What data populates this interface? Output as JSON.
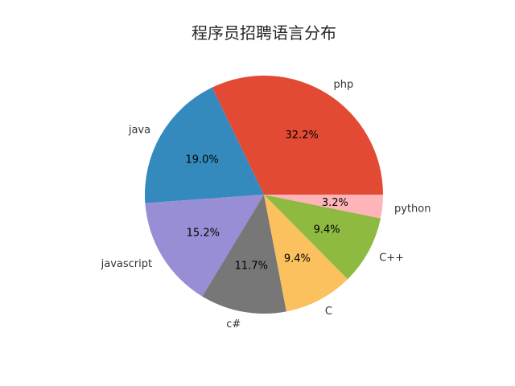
{
  "chart_data": {
    "type": "pie",
    "title": "程序员招聘语言分布",
    "start_angle_deg": 0,
    "direction": "counterclockwise",
    "slices": [
      {
        "label": "php",
        "value": 32.2,
        "pct_label": "32.2%",
        "color": "#e24a33"
      },
      {
        "label": "java",
        "value": 19.0,
        "pct_label": "19.0%",
        "color": "#348abd"
      },
      {
        "label": "javascript",
        "value": 15.2,
        "pct_label": "15.2%",
        "color": "#988ed5"
      },
      {
        "label": "c#",
        "value": 11.7,
        "pct_label": "11.7%",
        "color": "#777777"
      },
      {
        "label": "C",
        "value": 9.4,
        "pct_label": "9.4%",
        "color": "#fbc15e"
      },
      {
        "label": "C++",
        "value": 9.4,
        "pct_label": "9.4%",
        "color": "#8eba42"
      },
      {
        "label": "python",
        "value": 3.2,
        "pct_label": "3.2%",
        "color": "#ffb5b8"
      }
    ]
  }
}
